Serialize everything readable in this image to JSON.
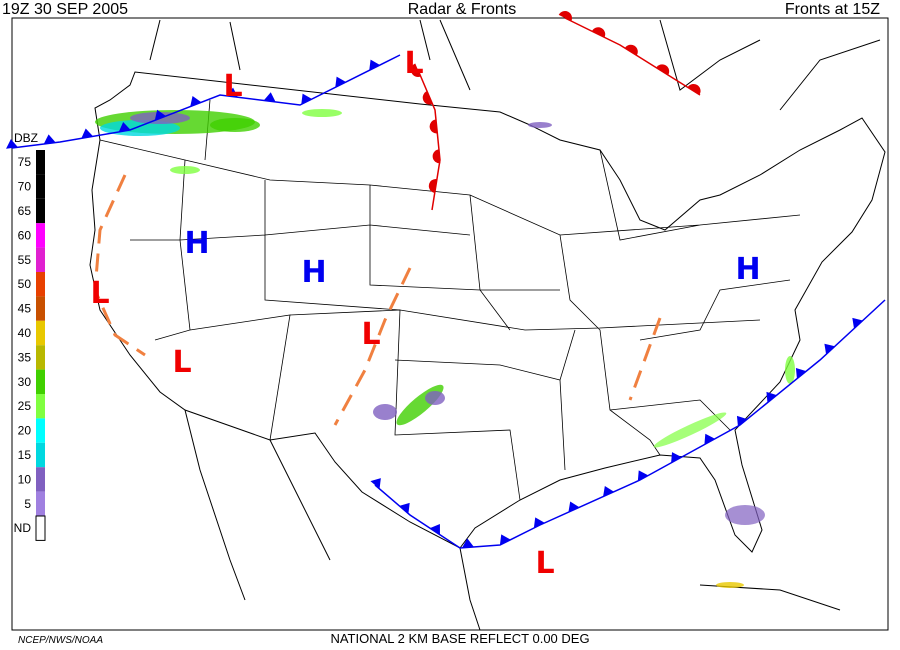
{
  "header": {
    "left": "19Z  30 SEP  2005",
    "center": "Radar & Fronts",
    "right": "Fronts at 15Z"
  },
  "legend": {
    "title": "DBZ",
    "levels": [
      {
        "label": "75",
        "color": "#000000"
      },
      {
        "label": "70",
        "color": "#000000"
      },
      {
        "label": "65",
        "color": "#000000"
      },
      {
        "label": "60",
        "color": "#ff00ff"
      },
      {
        "label": "55",
        "color": "#e020d0"
      },
      {
        "label": "50",
        "color": "#e84000"
      },
      {
        "label": "45",
        "color": "#c85000"
      },
      {
        "label": "40",
        "color": "#e8c800"
      },
      {
        "label": "35",
        "color": "#b8b800"
      },
      {
        "label": "30",
        "color": "#40d000"
      },
      {
        "label": "25",
        "color": "#80ff40"
      },
      {
        "label": "20",
        "color": "#00ffff"
      },
      {
        "label": "15",
        "color": "#00d8e0"
      },
      {
        "label": "10",
        "color": "#8060c0"
      },
      {
        "label": "5",
        "color": "#a080e0"
      },
      {
        "label": "ND",
        "color": "#ffffff"
      }
    ]
  },
  "pressure_centers": [
    "L",
    "L",
    "H",
    "H",
    "L",
    "L",
    "L",
    "H",
    "L"
  ],
  "footer": {
    "credit": "NCEP/NWS/NOAA",
    "product": "NATIONAL 2 KM BASE REFLECT 0.00 DEG"
  }
}
